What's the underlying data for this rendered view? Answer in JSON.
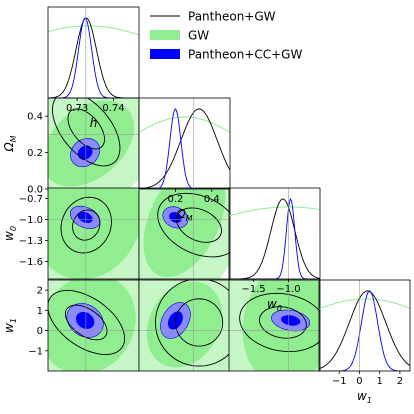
{
  "chart_data": {
    "type": "corner",
    "parameters": [
      {
        "key": "h",
        "label": "h",
        "range": [
          0.722,
          0.747
        ],
        "ticks": [
          0.73,
          0.74
        ],
        "tick_labels": [
          "0.73",
          "0.74"
        ]
      },
      {
        "key": "Om",
        "label": "Ω_M",
        "range": [
          0.0,
          0.5
        ],
        "ticks": [
          0.2,
          0.4
        ],
        "tick_labels": [
          "0.2",
          "0.4"
        ]
      },
      {
        "key": "w0",
        "label": "w_0",
        "range": [
          -1.85,
          -0.55
        ],
        "ticks": [
          -1.5,
          -1.0
        ],
        "tick_labels": [
          "−1.5",
          "−1.0"
        ]
      },
      {
        "key": "w1",
        "label": "w_1",
        "range": [
          -2.0,
          2.5
        ],
        "ticks": [
          -1,
          0,
          1,
          2
        ],
        "tick_labels": [
          "−1",
          "0",
          "1",
          "2"
        ]
      }
    ],
    "row_axes": [
      {
        "param": "Om",
        "label": "Ω_M",
        "ticks": [
          0.0,
          0.2,
          0.4
        ],
        "tick_labels": [
          "0.0",
          "0.2",
          "0.4"
        ]
      },
      {
        "param": "w0",
        "label": "w_0",
        "ticks": [
          -0.7,
          -1.0,
          -1.3,
          -1.6
        ],
        "tick_labels": [
          "−0.7",
          "−1.0",
          "−1.3",
          "−1.6"
        ]
      },
      {
        "param": "w1",
        "label": "w_1",
        "ticks": [
          2,
          1,
          0,
          -1
        ],
        "tick_labels": [
          "2",
          "1",
          "0",
          "−1"
        ]
      }
    ],
    "fiducial": {
      "h": 0.7324,
      "Om": 0.3,
      "w0": -1.0,
      "w1": 0.0
    },
    "legend": {
      "placement": "top-right",
      "entries": [
        {
          "label": "Pantheon+GW",
          "style": "line",
          "color": "#000000"
        },
        {
          "label": "GW",
          "style": "patch",
          "color": "#90ee90"
        },
        {
          "label": "Pantheon+CC+GW",
          "style": "patch",
          "color": "#0000ff"
        }
      ]
    },
    "colors": {
      "gw_outer": "#c6f5c6",
      "gw_inner": "#90ee90",
      "combined_outer": "#8b8bff",
      "combined_inner": "#0000ff",
      "pantheon_line": "#000000",
      "fiducial_line": "#999999"
    },
    "series": [
      {
        "name": "Pantheon+GW",
        "means": {
          "h": 0.7325,
          "Om": 0.33,
          "w0": -1.08,
          "w1": 0.4
        },
        "sigmas": {
          "h": 0.0028,
          "Om": 0.1,
          "w0": 0.17,
          "w1": 0.9
        }
      },
      {
        "name": "GW",
        "means": {
          "h": 0.733,
          "Om": 0.25,
          "w0": -1.0,
          "w1": 0.3
        },
        "sigmas": {
          "h": 0.009,
          "Om": 0.12,
          "w0": 0.55,
          "w1": 1.4
        }
      },
      {
        "name": "Pantheon+CC+GW",
        "means": {
          "h": 0.7322,
          "Om": 0.2,
          "w0": -0.97,
          "w1": 0.5
        },
        "sigmas": {
          "h": 0.0018,
          "Om": 0.03,
          "w0": 0.06,
          "w1": 0.4
        }
      }
    ]
  }
}
